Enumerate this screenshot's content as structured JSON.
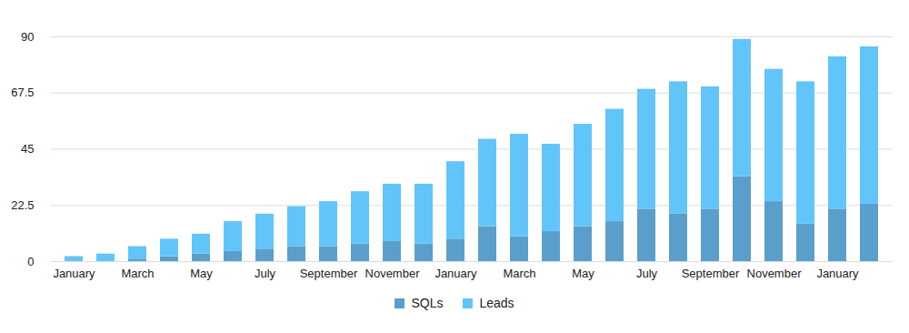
{
  "chart_data": {
    "type": "bar",
    "stacked": true,
    "grid": true,
    "legend": "bottom",
    "categories": [
      "January",
      null,
      "March",
      null,
      "May",
      null,
      "July",
      null,
      "September",
      null,
      "November",
      null,
      "January",
      null,
      "March",
      null,
      "May",
      null,
      "July",
      null,
      "September",
      null,
      "November",
      null,
      "January",
      null
    ],
    "ylim": [
      0,
      90
    ],
    "yticks": [
      0,
      22.5,
      45,
      67.5,
      90
    ],
    "series": [
      {
        "name": "SQLs",
        "color": "#5a9fcb",
        "values": [
          0,
          0,
          1,
          2,
          3,
          4,
          5,
          6,
          6,
          7,
          8,
          7,
          9,
          14,
          10,
          12,
          14,
          16,
          21,
          19,
          21,
          34,
          24,
          15,
          21,
          23
        ]
      },
      {
        "name": "Leads",
        "color": "#62c5fa",
        "values": [
          2,
          3,
          5,
          7,
          8,
          12,
          14,
          16,
          18,
          21,
          23,
          24,
          31,
          35,
          41,
          35,
          41,
          45,
          48,
          53,
          49,
          55,
          53,
          57,
          61,
          63
        ]
      }
    ]
  }
}
